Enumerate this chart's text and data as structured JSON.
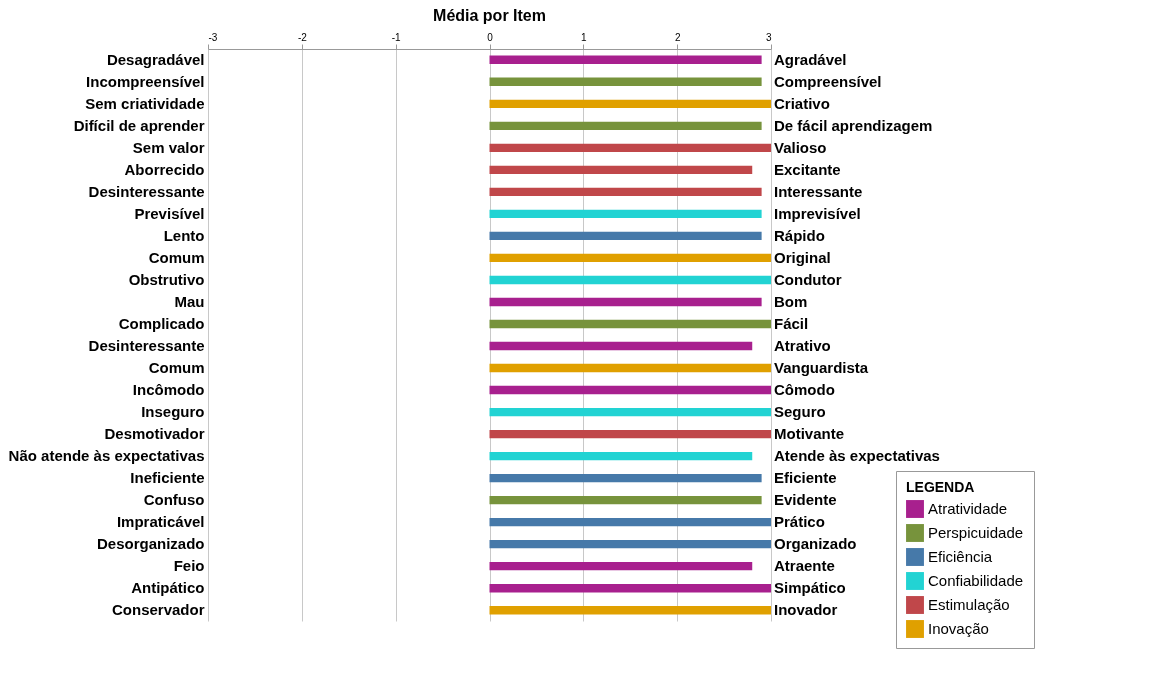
{
  "chart_data": {
    "type": "bar",
    "orientation": "horizontal",
    "title": "Média por Item",
    "legend_title": "LEGENDA",
    "legend": "bottom right",
    "grid": "x",
    "categories": [
      "Desagradável",
      "Incompreensível",
      "Sem criatividade",
      "Difícil de aprender",
      "Sem valor",
      "Aborrecido",
      "Desinteressante",
      "Previsível",
      "Lento",
      "Comum",
      "Obstrutivo",
      "Mau",
      "Complicado",
      "Desinteressante",
      "Comum",
      "Incômodo",
      "Inseguro",
      "Desmotivador",
      "Não atende às expectativas",
      "Ineficiente",
      "Confuso",
      "Impraticável",
      "Desorganizado",
      "Feio",
      "Antipático",
      "Conservador"
    ],
    "y2_categories": [
      "Agradável",
      "Compreensível",
      "Criativo",
      "De fácil aprendizagem",
      "Valioso",
      "Excitante",
      "Interessante",
      "Imprevisível",
      "Rápido",
      "Original",
      "Condutor",
      "Bom",
      "Fácil",
      "Atrativo",
      "Vanguardista",
      "Cômodo",
      "Seguro",
      "Motivante",
      "Atende às expectativas",
      "Eficiente",
      "Evidente",
      "Prático",
      "Organizado",
      "Atraente",
      "Simpático",
      "Inovador"
    ],
    "xlim": [
      -3,
      3
    ],
    "xticks": [
      -3,
      -2,
      -1,
      0,
      1,
      2,
      3
    ],
    "series": [
      {
        "name": "Atratividade",
        "color": "#a8208e",
        "values": [
          2.9,
          null,
          null,
          null,
          null,
          null,
          null,
          null,
          null,
          null,
          null,
          2.9,
          null,
          2.8,
          null,
          3,
          null,
          null,
          null,
          null,
          null,
          null,
          null,
          2.8,
          3,
          null
        ]
      },
      {
        "name": "Perspicuidade",
        "color": "#77933c",
        "values": [
          null,
          2.9,
          null,
          2.9,
          null,
          null,
          null,
          null,
          null,
          null,
          null,
          null,
          3,
          null,
          null,
          null,
          null,
          null,
          null,
          null,
          2.9,
          null,
          null,
          null,
          null,
          null
        ]
      },
      {
        "name": "Eficiência",
        "color": "#4679a9",
        "values": [
          null,
          null,
          null,
          null,
          null,
          null,
          null,
          null,
          2.9,
          null,
          null,
          null,
          null,
          null,
          null,
          null,
          null,
          null,
          null,
          2.9,
          null,
          3,
          3,
          null,
          null,
          null
        ]
      },
      {
        "name": "Confiabilidade",
        "color": "#22d3d3",
        "values": [
          null,
          null,
          null,
          null,
          null,
          null,
          null,
          2.9,
          null,
          null,
          3,
          null,
          null,
          null,
          null,
          null,
          3,
          null,
          2.8,
          null,
          null,
          null,
          null,
          null,
          null,
          null
        ]
      },
      {
        "name": "Estimulação",
        "color": "#c0474a",
        "values": [
          null,
          null,
          null,
          null,
          3,
          2.8,
          2.9,
          null,
          null,
          null,
          null,
          null,
          null,
          null,
          null,
          null,
          null,
          3,
          null,
          null,
          null,
          null,
          null,
          null,
          null,
          null
        ]
      },
      {
        "name": "Inovação",
        "color": "#e0a000",
        "values": [
          null,
          null,
          3,
          null,
          null,
          null,
          null,
          null,
          null,
          3,
          null,
          null,
          null,
          null,
          3,
          null,
          null,
          null,
          null,
          null,
          null,
          null,
          null,
          null,
          null,
          3
        ]
      }
    ]
  }
}
